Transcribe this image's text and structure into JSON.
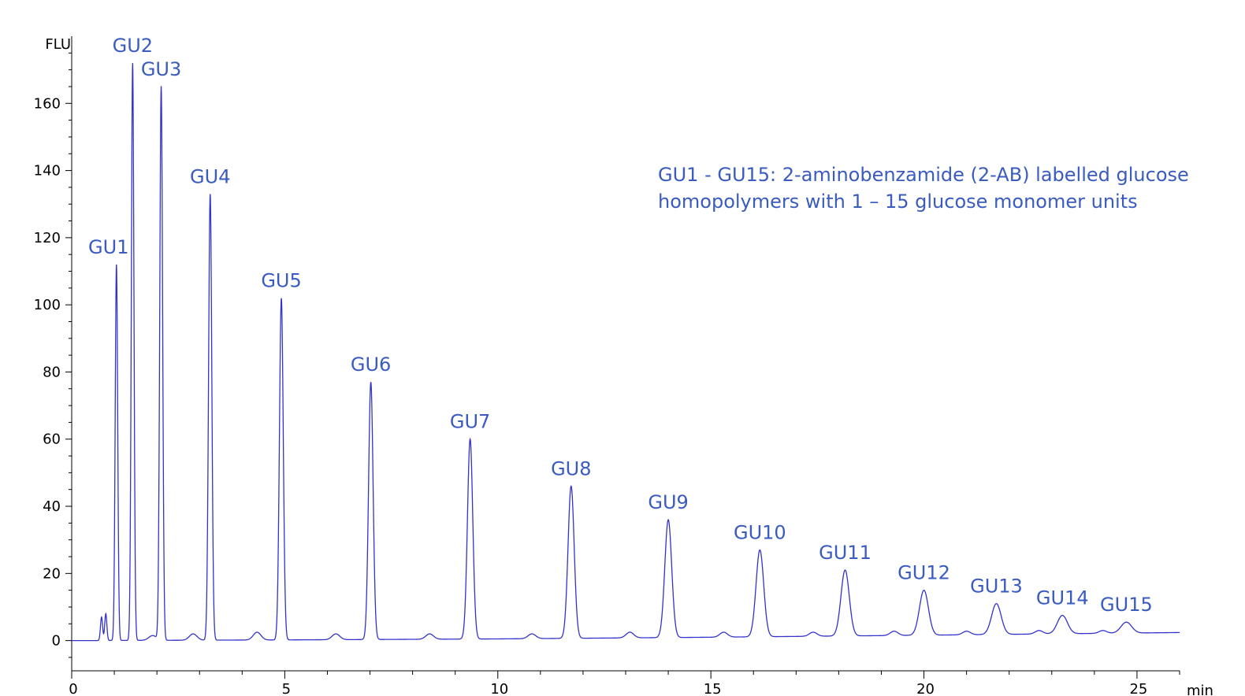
{
  "chart_data": {
    "type": "line",
    "title": "",
    "ylabel": "FLU",
    "xlabel": "min",
    "xlim": [
      0,
      26
    ],
    "ylim": [
      -9,
      180
    ],
    "x_ticks": [
      "0",
      "5",
      "10",
      "15",
      "20",
      "25"
    ],
    "y_ticks": [
      "0",
      "20",
      "40",
      "60",
      "80",
      "100",
      "120",
      "140",
      "160"
    ],
    "grid": false,
    "line_color": "#3333cc",
    "label_color": "#3a5bbf",
    "annotation": [
      "GU1 - GU15: 2-aminobenzamide (2-AB) labelled glucose",
      "homopolymers with 1 – 15 glucose monomer units"
    ],
    "series": [
      {
        "baseline": [
          [
            0,
            0
          ],
          [
            5,
            0.2
          ],
          [
            10,
            0.5
          ],
          [
            15,
            1.0
          ],
          [
            20,
            1.6
          ],
          [
            26,
            2.4
          ]
        ],
        "peaks": [
          {
            "label": "GU1",
            "x": 1.05,
            "y": 112
          },
          {
            "label": "GU2",
            "x": 1.43,
            "y": 172
          },
          {
            "label": "GU3",
            "x": 2.1,
            "y": 165
          },
          {
            "label": "GU4",
            "x": 3.25,
            "y": 133
          },
          {
            "label": "GU5",
            "x": 4.92,
            "y": 102
          },
          {
            "label": "GU6",
            "x": 7.02,
            "y": 77
          },
          {
            "label": "GU7",
            "x": 9.35,
            "y": 60
          },
          {
            "label": "GU8",
            "x": 11.72,
            "y": 46
          },
          {
            "label": "GU9",
            "x": 14.0,
            "y": 36
          },
          {
            "label": "GU10",
            "x": 16.15,
            "y": 27
          },
          {
            "label": "GU11",
            "x": 18.15,
            "y": 21
          },
          {
            "label": "GU12",
            "x": 20.0,
            "y": 15
          },
          {
            "label": "GU13",
            "x": 21.7,
            "y": 11
          },
          {
            "label": "GU14",
            "x": 23.25,
            "y": 7.5
          },
          {
            "label": "GU15",
            "x": 24.75,
            "y": 5.5
          }
        ],
        "minor_peaks": [
          {
            "x": 0.7,
            "y": 7
          },
          {
            "x": 0.8,
            "y": 8
          },
          {
            "x": 1.9,
            "y": 1.5
          },
          {
            "x": 2.85,
            "y": 2
          },
          {
            "x": 4.35,
            "y": 2.5
          },
          {
            "x": 6.2,
            "y": 2
          },
          {
            "x": 8.4,
            "y": 2
          },
          {
            "x": 10.8,
            "y": 2
          },
          {
            "x": 13.1,
            "y": 2.5
          },
          {
            "x": 15.3,
            "y": 2.5
          },
          {
            "x": 17.4,
            "y": 2.5
          },
          {
            "x": 19.3,
            "y": 2.8
          },
          {
            "x": 21.0,
            "y": 2.8
          },
          {
            "x": 22.7,
            "y": 3
          },
          {
            "x": 24.2,
            "y": 3
          }
        ]
      }
    ]
  }
}
